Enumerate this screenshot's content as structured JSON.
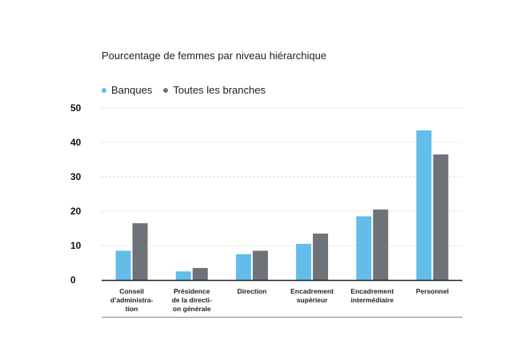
{
  "chart_data": {
    "type": "bar",
    "title": "Pourcentage de femmes par niveau hiérarchique",
    "categories": [
      [
        "Conseil",
        "d’administra-",
        "tion"
      ],
      [
        "Présidence",
        "de la directi-",
        "on générale"
      ],
      [
        "Direction"
      ],
      [
        "Encadrement",
        "supérieur"
      ],
      [
        "Encadrement",
        "intermédiaire"
      ],
      [
        "Personnel"
      ]
    ],
    "series": [
      {
        "name": "Banques",
        "color": "#62bde9",
        "values": [
          8.5,
          2.5,
          7.5,
          10.5,
          18.5,
          43.5
        ]
      },
      {
        "name": "Toutes les branches",
        "color": "#6d7378",
        "values": [
          16.5,
          3.5,
          8.5,
          13.5,
          20.5,
          36.5
        ]
      }
    ],
    "ylim": [
      0,
      50
    ],
    "yticks": [
      0,
      10,
      20,
      30,
      40,
      50
    ],
    "grid": "horizontal-dashed",
    "legend_position": "top-left"
  }
}
